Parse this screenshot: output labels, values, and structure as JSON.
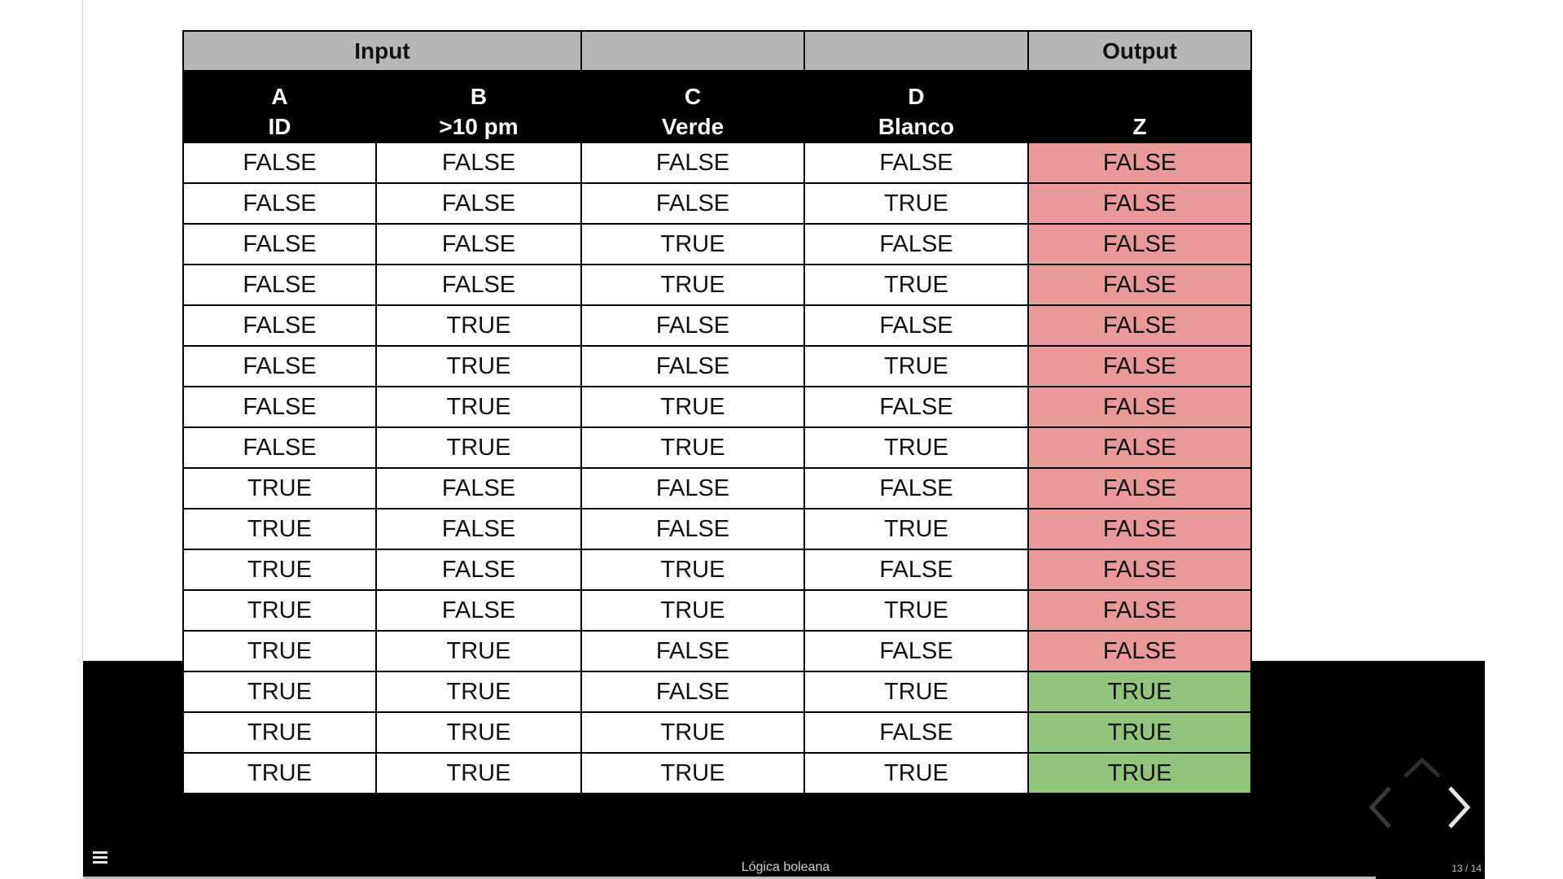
{
  "table": {
    "group_headers": {
      "input": "Input",
      "output": "Output"
    },
    "columns": [
      {
        "letter": "A",
        "label": "ID"
      },
      {
        "letter": "B",
        "label": ">10 pm"
      },
      {
        "letter": "C",
        "label": "Verde"
      },
      {
        "letter": "D",
        "label": "Blanco"
      },
      {
        "letter": "",
        "label": "Z"
      }
    ],
    "rows": [
      [
        "FALSE",
        "FALSE",
        "FALSE",
        "FALSE",
        "FALSE"
      ],
      [
        "FALSE",
        "FALSE",
        "FALSE",
        "TRUE",
        "FALSE"
      ],
      [
        "FALSE",
        "FALSE",
        "TRUE",
        "FALSE",
        "FALSE"
      ],
      [
        "FALSE",
        "FALSE",
        "TRUE",
        "TRUE",
        "FALSE"
      ],
      [
        "FALSE",
        "TRUE",
        "FALSE",
        "FALSE",
        "FALSE"
      ],
      [
        "FALSE",
        "TRUE",
        "FALSE",
        "TRUE",
        "FALSE"
      ],
      [
        "FALSE",
        "TRUE",
        "TRUE",
        "FALSE",
        "FALSE"
      ],
      [
        "FALSE",
        "TRUE",
        "TRUE",
        "TRUE",
        "FALSE"
      ],
      [
        "TRUE",
        "FALSE",
        "FALSE",
        "FALSE",
        "FALSE"
      ],
      [
        "TRUE",
        "FALSE",
        "FALSE",
        "TRUE",
        "FALSE"
      ],
      [
        "TRUE",
        "FALSE",
        "TRUE",
        "FALSE",
        "FALSE"
      ],
      [
        "TRUE",
        "FALSE",
        "TRUE",
        "TRUE",
        "FALSE"
      ],
      [
        "TRUE",
        "TRUE",
        "FALSE",
        "FALSE",
        "FALSE"
      ],
      [
        "TRUE",
        "TRUE",
        "FALSE",
        "TRUE",
        "TRUE"
      ],
      [
        "TRUE",
        "TRUE",
        "TRUE",
        "FALSE",
        "TRUE"
      ],
      [
        "TRUE",
        "TRUE",
        "TRUE",
        "TRUE",
        "TRUE"
      ]
    ]
  },
  "colors": {
    "group_header_bg": "#b7b7b7",
    "column_header_bg": "#000000",
    "output_false_bg": "#ea9999",
    "output_true_bg": "#93c47d"
  },
  "viewer": {
    "slide_title": "Lógica boleana",
    "slide_counter": "13 / 14",
    "icons": {
      "menu": "menu-icon",
      "up": "chevron-up-icon",
      "prev": "chevron-left-icon",
      "next": "chevron-right-icon"
    }
  }
}
